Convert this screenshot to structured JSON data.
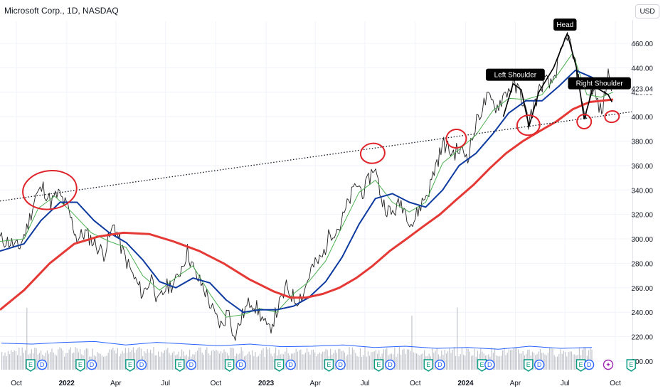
{
  "header": {
    "title": "Microsoft Corp., 1D, NASDAQ",
    "currency_button": "USD"
  },
  "chart_data": {
    "type": "line",
    "symbol": "Microsoft Corp.",
    "interval": "1D",
    "exchange": "NASDAQ",
    "currency": "USD",
    "x_tick_labels": [
      {
        "label": "Oct",
        "date": "2021-10",
        "bold": false
      },
      {
        "label": "2022",
        "date": "2022-01",
        "bold": true
      },
      {
        "label": "Apr",
        "date": "2022-04",
        "bold": false
      },
      {
        "label": "Jul",
        "date": "2022-07",
        "bold": false
      },
      {
        "label": "Oct",
        "date": "2022-10",
        "bold": false
      },
      {
        "label": "2023",
        "date": "2023-01",
        "bold": true
      },
      {
        "label": "Apr",
        "date": "2023-04",
        "bold": false
      },
      {
        "label": "Jul",
        "date": "2023-07",
        "bold": false
      },
      {
        "label": "Oct",
        "date": "2023-10",
        "bold": false
      },
      {
        "label": "2024",
        "date": "2024-01",
        "bold": true
      },
      {
        "label": "Apr",
        "date": "2024-04",
        "bold": false
      },
      {
        "label": "Jul",
        "date": "2024-07",
        "bold": false
      },
      {
        "label": "Oct",
        "date": "2024-10",
        "bold": false
      }
    ],
    "y_ticks": [
      200,
      220,
      240,
      260,
      280,
      300,
      320,
      340,
      360,
      380,
      400,
      420,
      440,
      460
    ],
    "y_tick_labels": [
      "200.00",
      "220.00",
      "240.00",
      "260.00",
      "280.00",
      "300.00",
      "320.00",
      "340.00",
      "360.00",
      "380.00",
      "400.00",
      "420.00",
      "440.00",
      "460.00"
    ],
    "ylim": [
      193,
      478
    ],
    "xlim": [
      "2021-09-01",
      "2024-10-31"
    ],
    "last_price_label": "423.04",
    "last_price": 423.04,
    "colors": {
      "price": "#1f1f1f",
      "ma_fast": "#4caf50",
      "ma_mid": "#0d3aa0",
      "ma_slow": "#e53935",
      "volume": "#b2b5be",
      "volume_ma": "#2962ff",
      "annotation": "#e0242b",
      "pattern": "#000000",
      "earnings_badge": "#089981",
      "dividend_badge": "#2962ff",
      "split_badge": "#f23645",
      "future_badge": "#9c27b0",
      "grid": "#f0f3fa"
    },
    "price_series": {
      "name": "",
      "points": [
        [
          "2021-09-01",
          300
        ],
        [
          "2021-09-20",
          297
        ],
        [
          "2021-10-05",
          292
        ],
        [
          "2021-10-20",
          308
        ],
        [
          "2021-11-05",
          335
        ],
        [
          "2021-11-19",
          342
        ],
        [
          "2021-12-03",
          330
        ],
        [
          "2021-12-17",
          337
        ],
        [
          "2022-01-03",
          325
        ],
        [
          "2022-01-20",
          300
        ],
        [
          "2022-02-04",
          305
        ],
        [
          "2022-02-24",
          295
        ],
        [
          "2022-03-10",
          288
        ],
        [
          "2022-03-29",
          312
        ],
        [
          "2022-04-13",
          290
        ],
        [
          "2022-05-02",
          270
        ],
        [
          "2022-05-20",
          255
        ],
        [
          "2022-06-08",
          270
        ],
        [
          "2022-06-16",
          246
        ],
        [
          "2022-07-01",
          260
        ],
        [
          "2022-07-20",
          265
        ],
        [
          "2022-08-10",
          290
        ],
        [
          "2022-08-25",
          270
        ],
        [
          "2022-09-09",
          260
        ],
        [
          "2022-09-30",
          236
        ],
        [
          "2022-10-13",
          228
        ],
        [
          "2022-10-25",
          245
        ],
        [
          "2022-11-03",
          218
        ],
        [
          "2022-11-21",
          240
        ],
        [
          "2022-12-05",
          250
        ],
        [
          "2022-12-22",
          238
        ],
        [
          "2023-01-05",
          224
        ],
        [
          "2023-01-20",
          240
        ],
        [
          "2023-02-07",
          260
        ],
        [
          "2023-02-24",
          250
        ],
        [
          "2023-03-10",
          255
        ],
        [
          "2023-03-24",
          275
        ],
        [
          "2023-04-14",
          285
        ],
        [
          "2023-04-28",
          305
        ],
        [
          "2023-05-16",
          310
        ],
        [
          "2023-06-01",
          330
        ],
        [
          "2023-06-15",
          345
        ],
        [
          "2023-06-29",
          338
        ],
        [
          "2023-07-18",
          360
        ],
        [
          "2023-08-02",
          330
        ],
        [
          "2023-08-18",
          320
        ],
        [
          "2023-09-05",
          330
        ],
        [
          "2023-09-26",
          312
        ],
        [
          "2023-10-11",
          328
        ],
        [
          "2023-10-26",
          340
        ],
        [
          "2023-11-07",
          360
        ],
        [
          "2023-11-22",
          378
        ],
        [
          "2023-12-07",
          370
        ],
        [
          "2023-12-21",
          373
        ],
        [
          "2024-01-05",
          368
        ],
        [
          "2024-01-24",
          400
        ],
        [
          "2024-02-09",
          415
        ],
        [
          "2024-02-28",
          408
        ],
        [
          "2024-03-14",
          420
        ],
        [
          "2024-03-28",
          425
        ],
        [
          "2024-04-10",
          420
        ],
        [
          "2024-04-25",
          395
        ],
        [
          "2024-05-10",
          415
        ],
        [
          "2024-05-23",
          430
        ],
        [
          "2024-06-05",
          425
        ],
        [
          "2024-06-20",
          445
        ],
        [
          "2024-07-05",
          468
        ],
        [
          "2024-07-18",
          445
        ],
        [
          "2024-07-31",
          418
        ],
        [
          "2024-08-05",
          398
        ],
        [
          "2024-08-20",
          424
        ],
        [
          "2024-09-06",
          402
        ],
        [
          "2024-09-18",
          435
        ],
        [
          "2024-09-27",
          423
        ]
      ]
    },
    "ma_fast": {
      "name": "",
      "points": [
        [
          "2021-09-01",
          298
        ],
        [
          "2021-10-15",
          300
        ],
        [
          "2021-11-10",
          325
        ],
        [
          "2021-12-10",
          335
        ],
        [
          "2022-01-10",
          322
        ],
        [
          "2022-02-15",
          305
        ],
        [
          "2022-03-20",
          298
        ],
        [
          "2022-04-20",
          293
        ],
        [
          "2022-05-20",
          270
        ],
        [
          "2022-06-20",
          258
        ],
        [
          "2022-07-25",
          270
        ],
        [
          "2022-08-20",
          278
        ],
        [
          "2022-09-20",
          255
        ],
        [
          "2022-10-20",
          236
        ],
        [
          "2022-11-20",
          238
        ],
        [
          "2022-12-20",
          243
        ],
        [
          "2023-01-20",
          240
        ],
        [
          "2023-02-20",
          255
        ],
        [
          "2023-03-20",
          265
        ],
        [
          "2023-04-20",
          282
        ],
        [
          "2023-05-20",
          310
        ],
        [
          "2023-06-20",
          338
        ],
        [
          "2023-07-20",
          348
        ],
        [
          "2023-08-20",
          330
        ],
        [
          "2023-09-20",
          322
        ],
        [
          "2023-10-20",
          330
        ],
        [
          "2023-11-20",
          362
        ],
        [
          "2023-12-20",
          373
        ],
        [
          "2024-01-20",
          385
        ],
        [
          "2024-02-20",
          405
        ],
        [
          "2024-03-20",
          415
        ],
        [
          "2024-04-20",
          414
        ],
        [
          "2024-05-20",
          418
        ],
        [
          "2024-06-20",
          436
        ],
        [
          "2024-07-15",
          452
        ],
        [
          "2024-08-10",
          418
        ],
        [
          "2024-09-05",
          416
        ],
        [
          "2024-09-27",
          420
        ]
      ]
    },
    "ma_mid": {
      "name": "",
      "points": [
        [
          "2021-09-01",
          290
        ],
        [
          "2021-10-15",
          296
        ],
        [
          "2021-11-15",
          315
        ],
        [
          "2021-12-20",
          330
        ],
        [
          "2022-01-20",
          330
        ],
        [
          "2022-02-20",
          315
        ],
        [
          "2022-03-20",
          305
        ],
        [
          "2022-04-20",
          297
        ],
        [
          "2022-05-20",
          283
        ],
        [
          "2022-06-20",
          265
        ],
        [
          "2022-07-20",
          260
        ],
        [
          "2022-08-20",
          268
        ],
        [
          "2022-09-20",
          264
        ],
        [
          "2022-10-20",
          250
        ],
        [
          "2022-11-20",
          240
        ],
        [
          "2022-12-20",
          242
        ],
        [
          "2023-01-20",
          242
        ],
        [
          "2023-02-20",
          245
        ],
        [
          "2023-03-20",
          252
        ],
        [
          "2023-04-20",
          265
        ],
        [
          "2023-05-20",
          285
        ],
        [
          "2023-06-20",
          312
        ],
        [
          "2023-07-20",
          333
        ],
        [
          "2023-08-20",
          337
        ],
        [
          "2023-09-20",
          330
        ],
        [
          "2023-10-20",
          326
        ],
        [
          "2023-11-20",
          340
        ],
        [
          "2023-12-20",
          360
        ],
        [
          "2024-01-20",
          370
        ],
        [
          "2024-02-20",
          386
        ],
        [
          "2024-03-20",
          403
        ],
        [
          "2024-04-20",
          413
        ],
        [
          "2024-05-20",
          413
        ],
        [
          "2024-06-20",
          425
        ],
        [
          "2024-07-20",
          438
        ],
        [
          "2024-08-20",
          432
        ],
        [
          "2024-09-27",
          423
        ]
      ]
    },
    "ma_slow": {
      "name": "",
      "points": [
        [
          "2021-09-01",
          242
        ],
        [
          "2021-10-15",
          258
        ],
        [
          "2021-12-01",
          280
        ],
        [
          "2022-01-15",
          296
        ],
        [
          "2022-03-01",
          302
        ],
        [
          "2022-04-15",
          305
        ],
        [
          "2022-06-01",
          304
        ],
        [
          "2022-07-15",
          298
        ],
        [
          "2022-09-01",
          290
        ],
        [
          "2022-10-15",
          280
        ],
        [
          "2022-12-01",
          267
        ],
        [
          "2023-01-15",
          257
        ],
        [
          "2023-02-15",
          252
        ],
        [
          "2023-03-15",
          252
        ],
        [
          "2023-04-15",
          255
        ],
        [
          "2023-05-15",
          260
        ],
        [
          "2023-06-15",
          268
        ],
        [
          "2023-07-15",
          278
        ],
        [
          "2023-08-15",
          290
        ],
        [
          "2023-09-15",
          300
        ],
        [
          "2023-10-15",
          310
        ],
        [
          "2023-11-15",
          320
        ],
        [
          "2023-12-15",
          332
        ],
        [
          "2024-01-15",
          344
        ],
        [
          "2024-02-15",
          358
        ],
        [
          "2024-03-15",
          370
        ],
        [
          "2024-04-15",
          380
        ],
        [
          "2024-05-15",
          388
        ],
        [
          "2024-06-15",
          396
        ],
        [
          "2024-07-15",
          406
        ],
        [
          "2024-08-15",
          412
        ],
        [
          "2024-09-27",
          414
        ]
      ]
    },
    "volume_ma_level": [
      0.62,
      0.6,
      0.64,
      0.66,
      0.58,
      0.64,
      0.6,
      0.56,
      0.6,
      0.54,
      0.55,
      0.58,
      0.52,
      0.55,
      0.5,
      0.52,
      0.48,
      0.55,
      0.5,
      0.52
    ],
    "trendline": {
      "style": "dotted",
      "points": [
        [
          "2021-09-01",
          331
        ],
        [
          "2024-10-31",
          404
        ]
      ]
    },
    "head_and_shoulders": {
      "points": [
        [
          "2024-03-10",
          400
        ],
        [
          "2024-03-28",
          427
        ],
        [
          "2024-04-12",
          422
        ],
        [
          "2024-04-26",
          392
        ],
        [
          "2024-05-14",
          420
        ],
        [
          "2024-06-10",
          440
        ],
        [
          "2024-07-05",
          468
        ],
        [
          "2024-07-22",
          440
        ],
        [
          "2024-08-05",
          398
        ],
        [
          "2024-08-22",
          425
        ],
        [
          "2024-09-18",
          418
        ],
        [
          "2024-09-25",
          412
        ]
      ],
      "labels": [
        {
          "text": "Left Shoulder",
          "date": "2024-04-01",
          "value": 434
        },
        {
          "text": "Head",
          "date": "2024-07-01",
          "value": 475
        },
        {
          "text": "Right Shoulder",
          "date": "2024-09-02",
          "value": 427
        }
      ]
    },
    "circle_annotations": [
      {
        "date": "2021-12-01",
        "value": 340
      },
      {
        "date": "2023-07-15",
        "value": 370
      },
      {
        "date": "2023-12-15",
        "value": 382
      },
      {
        "date": "2024-04-25",
        "value": 393
      },
      {
        "date": "2024-08-05",
        "value": 396
      },
      {
        "date": "2024-09-25",
        "value": 400
      }
    ],
    "events": [
      {
        "type": "E",
        "date": "2021-10-27"
      },
      {
        "type": "D",
        "date": "2021-11-17"
      },
      {
        "type": "E",
        "date": "2022-01-26"
      },
      {
        "type": "D",
        "date": "2022-02-16"
      },
      {
        "type": "E",
        "date": "2022-04-27"
      },
      {
        "type": "D",
        "date": "2022-05-18"
      },
      {
        "type": "E",
        "date": "2022-07-27"
      },
      {
        "type": "D",
        "date": "2022-08-17"
      },
      {
        "type": "E",
        "date": "2022-10-26"
      },
      {
        "type": "D",
        "date": "2022-11-16"
      },
      {
        "type": "E",
        "date": "2023-01-25"
      },
      {
        "type": "D",
        "date": "2023-02-15"
      },
      {
        "type": "E",
        "date": "2023-04-26"
      },
      {
        "type": "D",
        "date": "2023-05-17"
      },
      {
        "type": "E",
        "date": "2023-07-26"
      },
      {
        "type": "D",
        "date": "2023-08-16"
      },
      {
        "type": "E",
        "date": "2023-10-25"
      },
      {
        "type": "D",
        "date": "2023-11-15"
      },
      {
        "type": "E",
        "date": "2024-01-31"
      },
      {
        "type": "D",
        "date": "2024-02-14"
      },
      {
        "type": "E",
        "date": "2024-04-25"
      },
      {
        "type": "D",
        "date": "2024-05-15"
      },
      {
        "type": "E",
        "date": "2024-07-30"
      },
      {
        "type": "D",
        "date": "2024-08-14"
      },
      {
        "type": "future",
        "date": "2024-09-18"
      },
      {
        "type": "E",
        "date": "2024-10-30"
      }
    ]
  }
}
